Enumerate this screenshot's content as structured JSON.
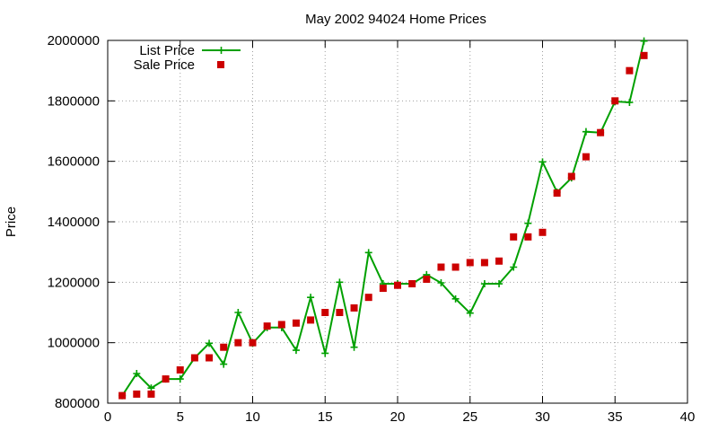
{
  "chart_data": {
    "type": "line",
    "title": "May 2002 94024 Home Prices",
    "xlabel": "",
    "ylabel": "Price",
    "xlim": [
      0,
      40
    ],
    "ylim": [
      800000,
      2000000
    ],
    "xticks": [
      0,
      5,
      10,
      15,
      20,
      25,
      30,
      35,
      40
    ],
    "yticks": [
      800000,
      1000000,
      1200000,
      1400000,
      1600000,
      1800000,
      2000000
    ],
    "grid": true,
    "legend_position": "top-left",
    "series": [
      {
        "name": "List Price",
        "style": "line+plus",
        "color": "#00a000",
        "x": [
          1,
          2,
          3,
          4,
          5,
          6,
          7,
          8,
          9,
          10,
          11,
          12,
          13,
          14,
          15,
          16,
          17,
          18,
          19,
          20,
          21,
          22,
          23,
          24,
          25,
          26,
          27,
          28,
          29,
          30,
          31,
          32,
          33,
          34,
          35,
          36,
          37
        ],
        "values": [
          825000,
          898000,
          850000,
          880000,
          880000,
          950000,
          998000,
          929000,
          1100000,
          998000,
          1050000,
          1050000,
          975000,
          1150000,
          965000,
          1200000,
          985000,
          1298000,
          1195000,
          1195000,
          1195000,
          1225000,
          1198000,
          1145000,
          1098000,
          1195000,
          1195000,
          1250000,
          1395000,
          1598000,
          1498000,
          1545000,
          1698000,
          1695000,
          1798000,
          1795000,
          1998000
        ]
      },
      {
        "name": "Sale Price",
        "style": "square",
        "color": "#cc0000",
        "x": [
          1,
          2,
          3,
          4,
          5,
          6,
          7,
          8,
          9,
          10,
          11,
          12,
          13,
          14,
          15,
          16,
          17,
          18,
          19,
          20,
          21,
          22,
          23,
          24,
          25,
          26,
          27,
          28,
          29,
          30,
          31,
          32,
          33,
          34,
          35,
          36,
          37
        ],
        "values": [
          825000,
          830000,
          830000,
          880000,
          910000,
          950000,
          950000,
          985000,
          1000000,
          1000000,
          1055000,
          1060000,
          1065000,
          1075000,
          1100000,
          1100000,
          1115000,
          1150000,
          1180000,
          1190000,
          1195000,
          1210000,
          1250000,
          1250000,
          1265000,
          1265000,
          1270000,
          1350000,
          1350000,
          1365000,
          1495000,
          1550000,
          1615000,
          1695000,
          1800000,
          1900000,
          1950000
        ]
      }
    ]
  }
}
